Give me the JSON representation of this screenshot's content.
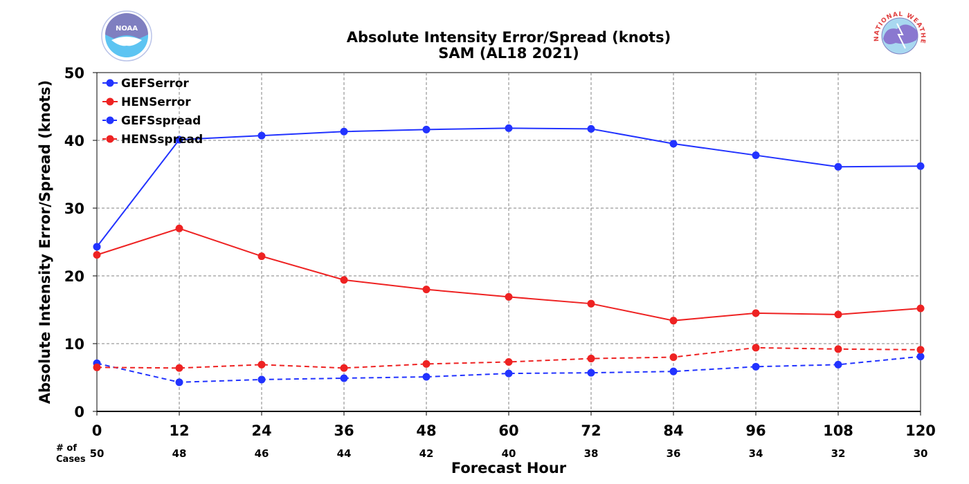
{
  "chart_data": {
    "type": "line",
    "title": "Absolute Intensity Error/Spread (knots)",
    "subtitle": "SAM (AL18 2021)",
    "xlabel": "Forecast Hour",
    "ylabel": "Absolute Intensity Error/Spread (knots)",
    "x": [
      0,
      12,
      24,
      36,
      48,
      60,
      72,
      84,
      96,
      108,
      120
    ],
    "xlim": [
      0,
      120
    ],
    "ylim": [
      0,
      50
    ],
    "yticks": [
      0,
      10,
      20,
      30,
      40,
      50
    ],
    "grid": true,
    "legend_position": "top-left",
    "cases_label_line1": "# of",
    "cases_label_line2": "Cases",
    "cases": [
      50,
      48,
      46,
      44,
      42,
      40,
      38,
      36,
      34,
      32,
      30
    ],
    "series": [
      {
        "name": "GEFSerror",
        "color": "#2233ff",
        "style": "solid",
        "values": [
          24.3,
          40.1,
          40.7,
          41.3,
          41.6,
          41.8,
          41.7,
          39.5,
          37.8,
          36.1,
          36.2
        ]
      },
      {
        "name": "HENSerror",
        "color": "#ee2222",
        "style": "solid",
        "values": [
          23.1,
          27.0,
          22.9,
          19.4,
          18.0,
          16.9,
          15.9,
          13.4,
          14.5,
          14.3,
          15.2
        ]
      },
      {
        "name": "GEFSspread",
        "color": "#2233ff",
        "style": "dashed",
        "values": [
          7.1,
          4.3,
          4.7,
          4.9,
          5.1,
          5.6,
          5.7,
          5.9,
          6.6,
          6.9,
          8.1
        ]
      },
      {
        "name": "HENSspread",
        "color": "#ee2222",
        "style": "dashed",
        "values": [
          6.5,
          6.4,
          6.9,
          6.4,
          7.0,
          7.3,
          7.8,
          8.0,
          9.4,
          9.2,
          9.1
        ]
      }
    ]
  },
  "logos": {
    "left": {
      "text": "NOAA",
      "icon": "noaa-logo-icon",
      "color": "#1ea0e0"
    },
    "right": {
      "text": "NATIONAL WEATHER SERVICE",
      "icon": "nws-logo-icon",
      "color": "#e04040"
    }
  }
}
